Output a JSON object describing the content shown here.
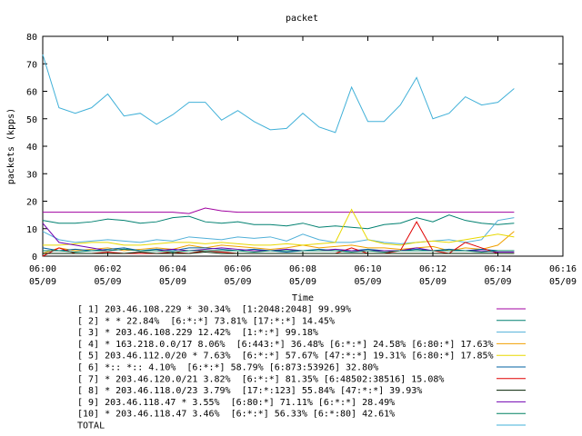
{
  "chart_data": {
    "type": "line",
    "title": "packet",
    "x_label": "Time",
    "y_label": "packets (kpps)",
    "x": [
      0,
      0.5,
      1,
      1.5,
      2,
      2.5,
      3,
      3.5,
      4,
      4.5,
      5,
      5.5,
      6,
      6.5,
      7,
      7.5,
      8,
      8.5,
      9,
      9.5,
      10,
      10.5,
      11,
      11.5,
      12,
      12.5,
      13,
      13.5,
      14,
      14.5
    ],
    "xlim": [
      0,
      16
    ],
    "xticks": [
      {
        "value": 0,
        "label": "06:00\n05/09"
      },
      {
        "value": 2,
        "label": "06:02\n05/09"
      },
      {
        "value": 4,
        "label": "06:04\n05/09"
      },
      {
        "value": 6,
        "label": "06:06\n05/09"
      },
      {
        "value": 8,
        "label": "06:08\n05/09"
      },
      {
        "value": 10,
        "label": "06:10\n05/09"
      },
      {
        "value": 12,
        "label": "06:12\n05/09"
      },
      {
        "value": 14,
        "label": "06:14\n05/09"
      },
      {
        "value": 16,
        "label": "06:16\n05/09"
      }
    ],
    "ylim": [
      0,
      80
    ],
    "yticks": [
      0,
      10,
      20,
      30,
      40,
      50,
      60,
      70,
      80
    ],
    "series": [
      {
        "name": "[ 1] 203.46.108.229 * 30.34%  [1:2048:2048] 99.99%",
        "color": "#a000a0",
        "values": [
          16,
          16,
          16,
          16,
          16,
          16,
          16,
          16,
          16,
          15.5,
          17.5,
          16.5,
          16,
          16,
          16,
          16,
          16,
          16,
          16,
          16,
          16,
          16,
          16,
          16,
          16,
          16,
          16,
          16,
          16,
          16
        ]
      },
      {
        "name": "[ 2] * * 22.84%  [6:*:*] 73.81% [17:*:*] 14.45%",
        "color": "#008070",
        "values": [
          13,
          12,
          12,
          12.5,
          13.5,
          13,
          12,
          12.5,
          14,
          14.5,
          12.5,
          12,
          12.5,
          11.5,
          11.5,
          11,
          12,
          10.5,
          11,
          10.5,
          10,
          11.5,
          12,
          14,
          12.5,
          15,
          13,
          12,
          11.5,
          12
        ]
      },
      {
        "name": "[ 3] * 203.46.108.229 12.42%  [1:*:*] 99.18%",
        "color": "#50b0d8",
        "values": [
          9,
          6,
          5,
          5.5,
          6,
          5.5,
          5,
          6,
          5.5,
          7,
          6.5,
          6,
          7,
          6.5,
          7,
          5.5,
          8,
          6,
          5,
          5,
          6,
          5,
          4.5,
          5,
          5.5,
          6,
          5,
          6,
          13,
          14
        ]
      },
      {
        "name": "[ 4] * 163.218.0.0/17 8.06%  [6:443:*] 36.48% [6:*:*] 24.58% [6:80:*] 17.63%",
        "color": "#f0a000",
        "values": [
          1,
          3,
          2,
          2.5,
          3,
          2,
          2.5,
          3,
          2.5,
          4,
          3,
          4,
          3.5,
          3,
          2.5,
          3,
          4,
          3,
          3.5,
          4,
          3,
          3,
          2.5,
          3,
          3.5,
          2,
          3,
          2.5,
          4,
          9
        ]
      },
      {
        "name": "[ 5] 203.46.112.0/20 * 7.63%  [6:*:*] 57.67% [47:*:*] 19.31% [6:80:*] 17.85%",
        "color": "#e8d800",
        "values": [
          4,
          4,
          4.5,
          5,
          5,
          4,
          4,
          4.5,
          5,
          5,
          4.5,
          5,
          4.5,
          4,
          4,
          4.5,
          4,
          4.5,
          5,
          17,
          6,
          4.5,
          4,
          5,
          5.5,
          5,
          6,
          7,
          8,
          7
        ]
      },
      {
        "name": "[ 6] *:: *:: 4.10%  [6:*:*] 58.79% [6:873:53926] 32.80%",
        "color": "#0060a0",
        "values": [
          3,
          2,
          2.5,
          2,
          2.5,
          3,
          2,
          2.5,
          2,
          3,
          3,
          2.5,
          2,
          2.5,
          2,
          1.5,
          2,
          2.5,
          2,
          2,
          2.5,
          2,
          2,
          2.5,
          2,
          2.5,
          2,
          2.5,
          2,
          2
        ]
      },
      {
        "name": "[ 7] * 203.46.120.0/21 3.82%  [6:*:*] 81.35% [6:48502:38516] 15.08%",
        "color": "#e00000",
        "values": [
          0,
          3,
          1,
          1,
          1.5,
          1,
          1,
          1,
          1.5,
          1,
          2,
          1.5,
          1,
          1,
          1,
          1,
          1,
          1,
          1,
          3,
          1,
          1,
          2,
          12.5,
          2,
          1,
          5,
          3,
          1,
          1
        ]
      },
      {
        "name": "[ 8] * 203.46.118.0/23 3.79%  [17:*:123] 55.84% [47:*:*] 39.93%",
        "color": "#002000",
        "values": [
          1,
          1,
          1,
          1,
          1,
          1,
          1.5,
          1,
          1,
          1,
          1.5,
          1,
          1,
          1,
          1,
          1,
          1,
          1,
          1,
          1,
          1,
          1,
          1,
          1,
          1,
          1,
          1,
          1,
          1,
          1
        ]
      },
      {
        "name": "[ 9] 203.46.118.47 * 3.55%  [6:80:*] 71.11% [6:*:*] 28.49%",
        "color": "#7000b0",
        "values": [
          12,
          5,
          4,
          3,
          2,
          2.5,
          2,
          2,
          2.5,
          2,
          2.5,
          3,
          2.5,
          2,
          2,
          2.5,
          2,
          2,
          2.5,
          2,
          2,
          2,
          2,
          3,
          2,
          2,
          2,
          2,
          1.5,
          1.5
        ]
      },
      {
        "name": "[10] * 203.46.118.47 3.46%  [6:*:*] 56.33% [6:*:80] 42.61%",
        "color": "#008060",
        "values": [
          2,
          2,
          1.5,
          2,
          2,
          2.5,
          2,
          2,
          1.5,
          2,
          2,
          2,
          2,
          1.5,
          2,
          2,
          2,
          2,
          2,
          1.5,
          2,
          1.5,
          2,
          2,
          2,
          2,
          2,
          1.5,
          2,
          2
        ]
      },
      {
        "name": "TOTAL",
        "color": "#40b0d8",
        "values": [
          73.4,
          54,
          52,
          54,
          59,
          51,
          52,
          48,
          51.5,
          56,
          56,
          49.5,
          53,
          49,
          46,
          46.5,
          52,
          47,
          45,
          61.5,
          49,
          49,
          55,
          65,
          50,
          52,
          58,
          55,
          56,
          61
        ]
      }
    ]
  }
}
